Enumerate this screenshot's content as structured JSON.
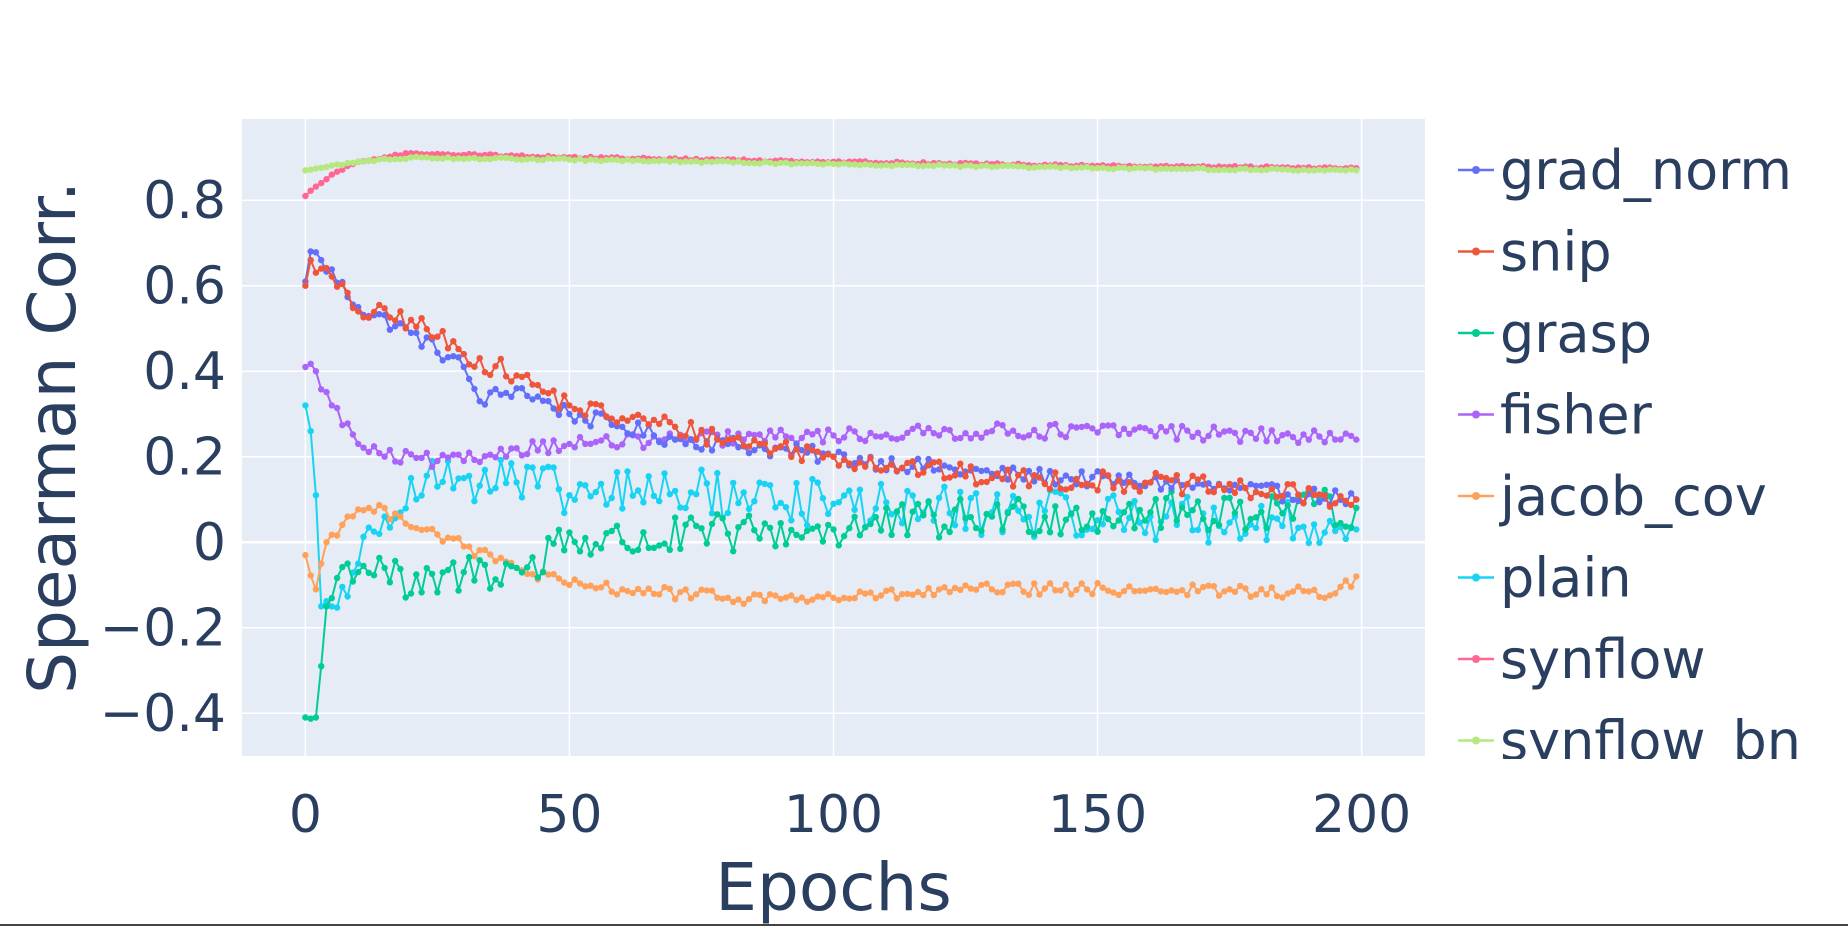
{
  "chart_data": {
    "type": "line",
    "xlabel": "Epochs",
    "ylabel": "Spearman Corr.",
    "xlim": [
      -12,
      212
    ],
    "ylim": [
      -0.5,
      0.99
    ],
    "x_ticks": [
      0,
      50,
      100,
      150,
      200
    ],
    "x_tick_labels": [
      "0",
      "50",
      "100",
      "150",
      "200"
    ],
    "y_ticks": [
      -0.4,
      -0.2,
      0,
      0.2,
      0.4,
      0.6,
      0.8
    ],
    "y_tick_labels": [
      "−0.4",
      "−0.2",
      "0",
      "0.2",
      "0.4",
      "0.6",
      "0.8"
    ],
    "grid": true,
    "legend": "right",
    "x_range": [
      0,
      199
    ],
    "series": [
      {
        "name": "grad_norm",
        "color": "#636efa",
        "noise": 0.012,
        "keyframes": [
          [
            0,
            0.61
          ],
          [
            1,
            0.68
          ],
          [
            3,
            0.66
          ],
          [
            10,
            0.55
          ],
          [
            20,
            0.49
          ],
          [
            30,
            0.41
          ],
          [
            33,
            0.33
          ],
          [
            40,
            0.36
          ],
          [
            50,
            0.3
          ],
          [
            60,
            0.27
          ],
          [
            70,
            0.24
          ],
          [
            80,
            0.23
          ],
          [
            100,
            0.2
          ],
          [
            130,
            0.16
          ],
          [
            160,
            0.14
          ],
          [
            199,
            0.1
          ]
        ]
      },
      {
        "name": "snip",
        "color": "#ef553b",
        "noise": 0.015,
        "keyframes": [
          [
            0,
            0.6
          ],
          [
            1,
            0.66
          ],
          [
            3,
            0.64
          ],
          [
            10,
            0.54
          ],
          [
            20,
            0.52
          ],
          [
            30,
            0.44
          ],
          [
            40,
            0.39
          ],
          [
            50,
            0.32
          ],
          [
            60,
            0.29
          ],
          [
            70,
            0.27
          ],
          [
            80,
            0.24
          ],
          [
            100,
            0.2
          ],
          [
            130,
            0.15
          ],
          [
            160,
            0.14
          ],
          [
            199,
            0.1
          ]
        ]
      },
      {
        "name": "grasp",
        "color": "#00cc96",
        "noise": 0.03,
        "keyframes": [
          [
            0,
            -0.41
          ],
          [
            2,
            -0.41
          ],
          [
            3,
            -0.29
          ],
          [
            4,
            -0.15
          ],
          [
            8,
            -0.05
          ],
          [
            15,
            -0.06
          ],
          [
            20,
            -0.12
          ],
          [
            30,
            -0.07
          ],
          [
            40,
            -0.06
          ],
          [
            45,
            -0.07
          ],
          [
            46,
            0.01
          ],
          [
            60,
            0.0
          ],
          [
            80,
            0.02
          ],
          [
            100,
            0.03
          ],
          [
            130,
            0.06
          ],
          [
            160,
            0.07
          ],
          [
            199,
            0.08
          ]
        ]
      },
      {
        "name": "fisher",
        "color": "#ab63fa",
        "noise": 0.011,
        "keyframes": [
          [
            0,
            0.41
          ],
          [
            2,
            0.4
          ],
          [
            5,
            0.32
          ],
          [
            10,
            0.23
          ],
          [
            15,
            0.2
          ],
          [
            25,
            0.19
          ],
          [
            30,
            0.19
          ],
          [
            40,
            0.22
          ],
          [
            50,
            0.23
          ],
          [
            70,
            0.24
          ],
          [
            100,
            0.25
          ],
          [
            130,
            0.26
          ],
          [
            160,
            0.26
          ],
          [
            199,
            0.24
          ]
        ]
      },
      {
        "name": "jacob_cov",
        "color": "#ffa15a",
        "noise": 0.009,
        "keyframes": [
          [
            0,
            -0.03
          ],
          [
            2,
            -0.11
          ],
          [
            4,
            0.0
          ],
          [
            8,
            0.06
          ],
          [
            12,
            0.08
          ],
          [
            18,
            0.06
          ],
          [
            30,
            -0.01
          ],
          [
            40,
            -0.06
          ],
          [
            50,
            -0.1
          ],
          [
            60,
            -0.11
          ],
          [
            80,
            -0.13
          ],
          [
            100,
            -0.13
          ],
          [
            130,
            -0.11
          ],
          [
            160,
            -0.11
          ],
          [
            195,
            -0.12
          ],
          [
            199,
            -0.08
          ]
        ]
      },
      {
        "name": "plain",
        "color": "#19d3f3",
        "noise": 0.035,
        "keyframes": [
          [
            0,
            0.32
          ],
          [
            1,
            0.26
          ],
          [
            2,
            0.11
          ],
          [
            3,
            -0.15
          ],
          [
            5,
            -0.15
          ],
          [
            10,
            -0.05
          ],
          [
            15,
            0.06
          ],
          [
            20,
            0.15
          ],
          [
            30,
            0.15
          ],
          [
            40,
            0.14
          ],
          [
            50,
            0.11
          ],
          [
            70,
            0.12
          ],
          [
            100,
            0.09
          ],
          [
            130,
            0.07
          ],
          [
            160,
            0.06
          ],
          [
            199,
            0.03
          ]
        ]
      },
      {
        "name": "synflow",
        "color": "#ff6692",
        "noise": 0.0015,
        "keyframes": [
          [
            0,
            0.81
          ],
          [
            5,
            0.86
          ],
          [
            10,
            0.89
          ],
          [
            15,
            0.9
          ],
          [
            20,
            0.91
          ],
          [
            50,
            0.9
          ],
          [
            100,
            0.89
          ],
          [
            150,
            0.88
          ],
          [
            199,
            0.875
          ]
        ]
      },
      {
        "name": "synflow_bn",
        "color": "#b6e880",
        "noise": 0.0015,
        "keyframes": [
          [
            0,
            0.87
          ],
          [
            10,
            0.89
          ],
          [
            20,
            0.9
          ],
          [
            50,
            0.895
          ],
          [
            100,
            0.885
          ],
          [
            150,
            0.875
          ],
          [
            199,
            0.87
          ]
        ]
      }
    ]
  }
}
